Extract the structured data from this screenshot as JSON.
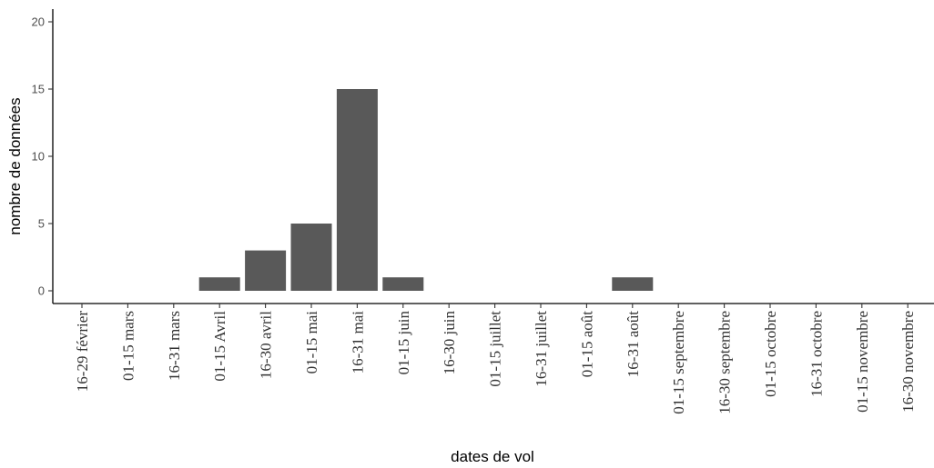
{
  "chart_data": {
    "type": "bar",
    "categories": [
      "16-29 février",
      "01-15 mars",
      "16-31 mars",
      "01-15 Avril",
      "16-30 avril",
      "01-15 mai",
      "16-31 mai",
      "01-15 juin",
      "16-30 juin",
      "01-15 juillet",
      "16-31 juillet",
      "01-15 août",
      "16-31 août",
      "01-15 septembre",
      "16-30 septembre",
      "01-15 octobre",
      "16-31 octobre",
      "01-15 novembre",
      "16-30 novembre"
    ],
    "values": [
      0,
      0,
      0,
      1,
      3,
      5,
      15,
      1,
      0,
      0,
      0,
      0,
      1,
      0,
      0,
      0,
      0,
      0,
      0
    ],
    "xlabel": "dates de vol",
    "ylabel": "nombre de données",
    "ylim": [
      0,
      20
    ],
    "yticks": [
      0,
      5,
      10,
      15,
      20
    ],
    "grid": false,
    "bar_color": "#595959"
  }
}
